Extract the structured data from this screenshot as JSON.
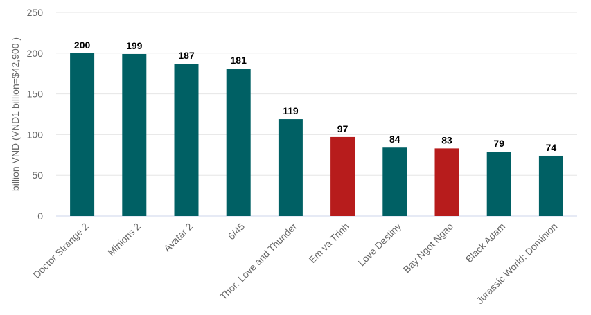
{
  "chart_data": {
    "type": "bar",
    "categories": [
      "Doctor Strange 2",
      "Minions 2",
      "Avatar 2",
      "6/45",
      "Thor: Love and Thunder",
      "Em va Trinh",
      "Love Destiny",
      "Bay Ngot Ngao",
      "Black Adam",
      "Jurassic World: Dominion"
    ],
    "values": [
      200,
      199,
      187,
      181,
      119,
      97,
      84,
      83,
      79,
      74
    ],
    "colors": [
      "#006064",
      "#006064",
      "#006064",
      "#006064",
      "#006064",
      "#b71c1c",
      "#006064",
      "#b71c1c",
      "#006064",
      "#006064"
    ],
    "ylabel": "billion VND (VND1 billion=$42,900 )",
    "ylim": [
      0,
      250
    ],
    "yticks": [
      0,
      50,
      100,
      150,
      200,
      250
    ],
    "grid": true,
    "data_labels": true
  }
}
